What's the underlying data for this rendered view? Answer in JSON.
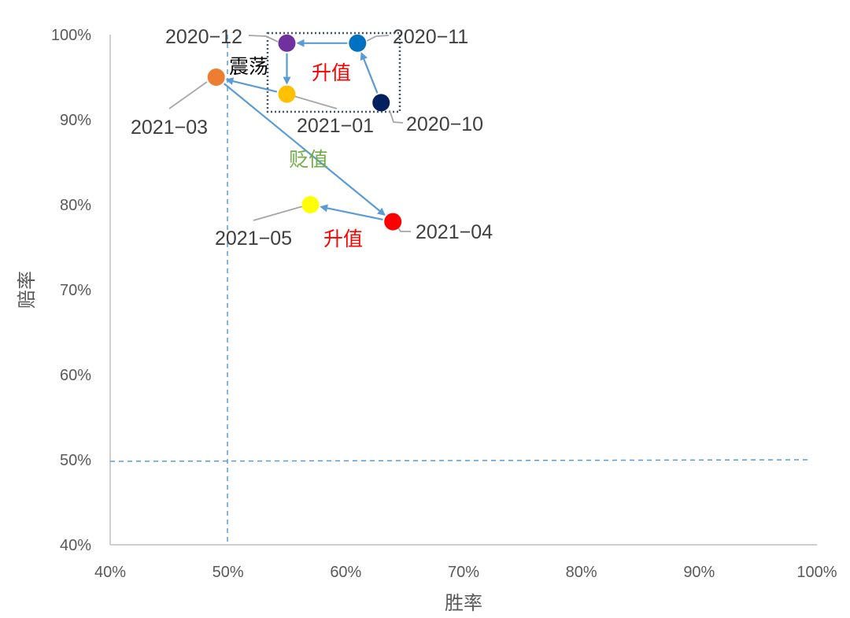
{
  "chart_data": {
    "type": "scatter",
    "xlabel": "胜率",
    "ylabel": "赔率",
    "xlim": [
      0.4,
      1.0
    ],
    "ylim": [
      0.4,
      1.0
    ],
    "x_ticks": [
      "40%",
      "50%",
      "60%",
      "70%",
      "80%",
      "90%",
      "100%"
    ],
    "y_ticks": [
      "40%",
      "50%",
      "60%",
      "70%",
      "80%",
      "90%",
      "100%"
    ],
    "grid": false,
    "reference_lines": {
      "x": 0.5,
      "y": 0.5
    },
    "points": [
      {
        "label": "2020−10",
        "x": 0.63,
        "y": 0.92,
        "color": "#002060"
      },
      {
        "label": "2020−11",
        "x": 0.61,
        "y": 0.99,
        "color": "#0070C0"
      },
      {
        "label": "2020−12",
        "x": 0.55,
        "y": 0.99,
        "color": "#7030A0"
      },
      {
        "label": "2021−01",
        "x": 0.55,
        "y": 0.93,
        "color": "#FFC000"
      },
      {
        "label": "2021−03",
        "x": 0.49,
        "y": 0.95,
        "color": "#ED7D31"
      },
      {
        "label": "2021−04",
        "x": 0.64,
        "y": 0.78,
        "color": "#FF0000"
      },
      {
        "label": "2021−05",
        "x": 0.57,
        "y": 0.8,
        "color": "#FFFF00"
      }
    ],
    "path_order": [
      "2020−10",
      "2020−11",
      "2020−12",
      "2021−01",
      "2021−03",
      "2021−04",
      "2021−05"
    ],
    "annotations": [
      {
        "text": "升值",
        "color": "#FF0000"
      },
      {
        "text": "震荡",
        "color": "#000000"
      },
      {
        "text": "贬值",
        "color": "#70AD47"
      },
      {
        "text": "升值",
        "color": "#FF0000"
      }
    ],
    "colors": {
      "arrow": "#5B9BD5",
      "axis": "#BFBFBF",
      "ref_line": "#5B9BD5",
      "box": "#44546A",
      "leader": "#A6A6A6"
    }
  }
}
